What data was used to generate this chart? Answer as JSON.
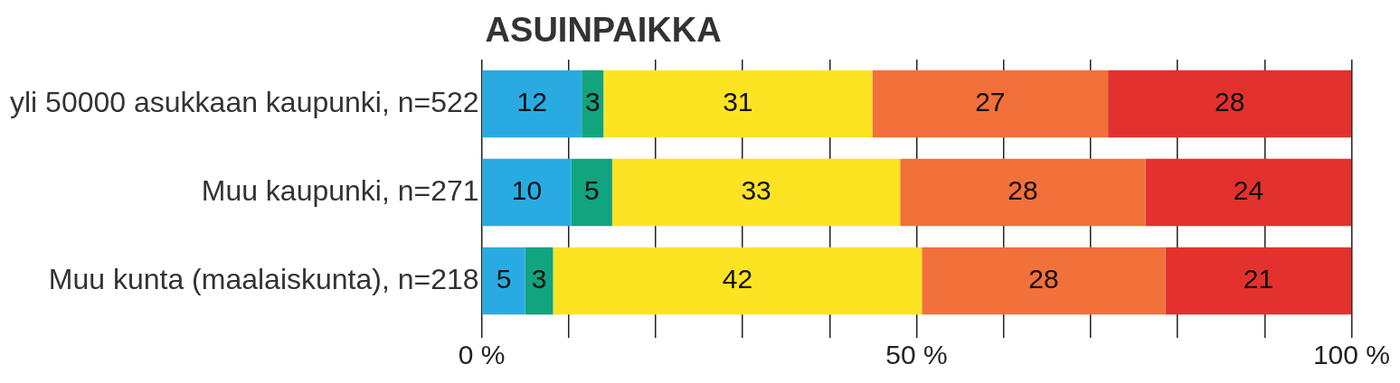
{
  "chart_data": {
    "type": "bar",
    "title": "ASUINPAIKKA",
    "orientation": "horizontal",
    "stacked": true,
    "categories": [
      "yli 50000 asukkaan kaupunki, n=522",
      "Muu kaupunki, n=271",
      "Muu kunta (maalaiskunta), n=218"
    ],
    "series": [
      {
        "color": "#29abe2",
        "values": [
          11.5,
          10.3,
          5.0
        ],
        "value_labels": [
          "12",
          "10",
          "5"
        ]
      },
      {
        "color": "#12a37f",
        "values": [
          2.5,
          4.7,
          3.2
        ],
        "value_labels": [
          "3",
          "5",
          "3"
        ]
      },
      {
        "color": "#fde423",
        "values": [
          30.9,
          33.1,
          42.4
        ],
        "value_labels": [
          "31",
          "33",
          "42"
        ]
      },
      {
        "color": "#f2703a",
        "values": [
          27.1,
          28.2,
          28.0
        ],
        "value_labels": [
          "27",
          "28",
          "28"
        ]
      },
      {
        "color": "#e3312d",
        "values": [
          28.0,
          23.7,
          21.4
        ],
        "value_labels": [
          "28",
          "24",
          "21"
        ]
      }
    ],
    "xlim": [
      0,
      100
    ],
    "xticks": [
      {
        "value": 0,
        "label": "0 %"
      },
      {
        "value": 10,
        "label": null
      },
      {
        "value": 20,
        "label": null
      },
      {
        "value": 30,
        "label": null
      },
      {
        "value": 40,
        "label": null
      },
      {
        "value": 50,
        "label": "50 %"
      },
      {
        "value": 60,
        "label": null
      },
      {
        "value": 70,
        "label": null
      },
      {
        "value": 80,
        "label": null
      },
      {
        "value": 90,
        "label": null
      },
      {
        "value": 100,
        "label": "100 %"
      }
    ],
    "grid": "x",
    "legend": false
  }
}
